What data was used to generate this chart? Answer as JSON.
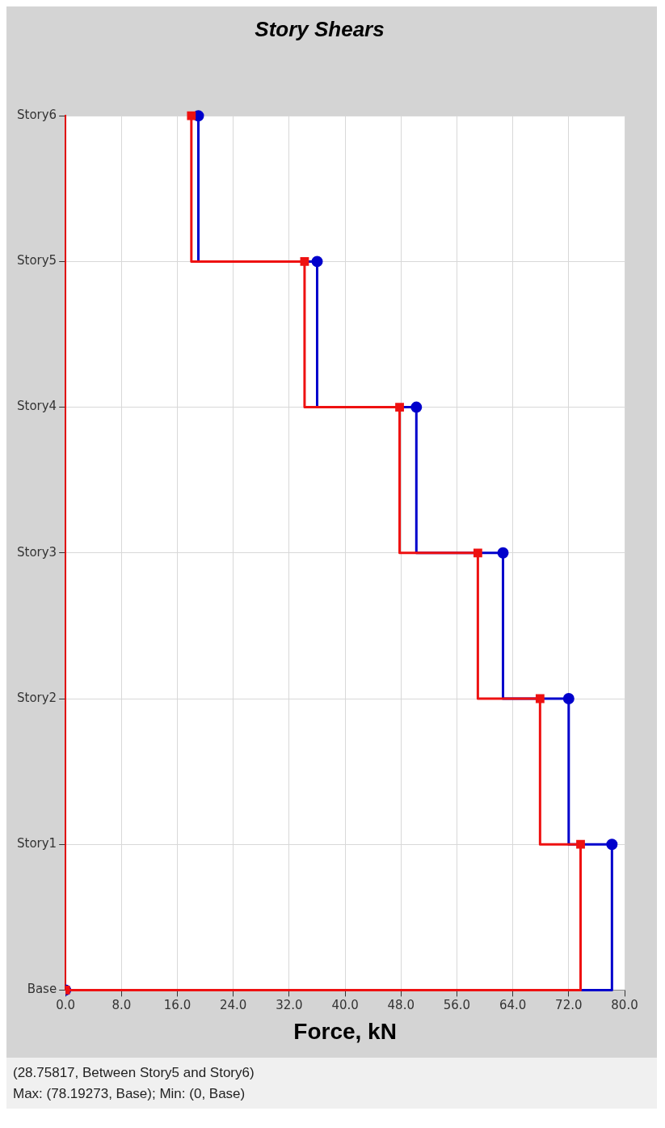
{
  "chart_data": {
    "type": "step",
    "orientation": "horizontal",
    "title": "Story Shears",
    "xlabel": "Force, kN",
    "categories": [
      "Story6",
      "Story5",
      "Story4",
      "Story3",
      "Story2",
      "Story1",
      "Base"
    ],
    "xlim": [
      0,
      80
    ],
    "xticks": [
      {
        "value": 0,
        "label": "0.0"
      },
      {
        "value": 8,
        "label": "8.0"
      },
      {
        "value": 16,
        "label": "16.0"
      },
      {
        "value": 24,
        "label": "24.0"
      },
      {
        "value": 32,
        "label": "32.0"
      },
      {
        "value": 40,
        "label": "40.0"
      },
      {
        "value": 48,
        "label": "48.0"
      },
      {
        "value": 56,
        "label": "56.0"
      },
      {
        "value": 64,
        "label": "64.0"
      },
      {
        "value": 72,
        "label": "72.0"
      },
      {
        "value": 80,
        "label": "80.0"
      }
    ],
    "grid": true,
    "line_style": "solid",
    "series": [
      {
        "color": "#0000cc",
        "marker": "circle",
        "values": [
          19.0,
          36.0,
          50.2,
          62.6,
          72.0,
          78.19,
          0
        ]
      },
      {
        "color": "#ee1111",
        "marker": "square",
        "values": [
          18.0,
          34.2,
          47.8,
          59.0,
          67.9,
          73.7,
          0
        ]
      }
    ],
    "annotations": [
      "(28.75817, Between Story5 and Story6)",
      "Max: (78.19273, Base);   Min: (0, Base)"
    ]
  }
}
